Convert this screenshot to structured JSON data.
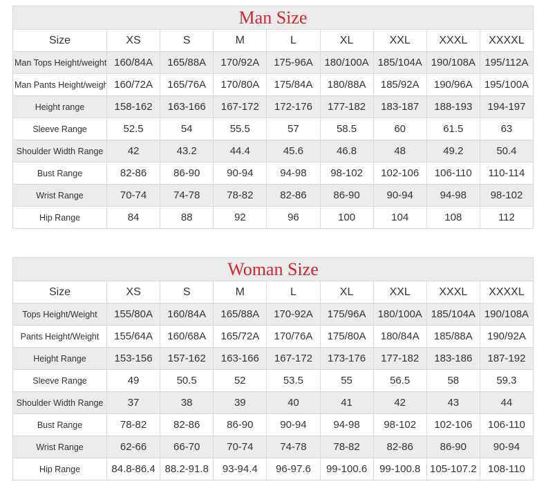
{
  "colors": {
    "title_red": "#d4262b",
    "stripe_bg": "#ebebeb",
    "border": "#d9d9d9",
    "text": "#333333"
  },
  "man_table": {
    "title": "Man Size",
    "header": [
      "Size",
      "XS",
      "S",
      "M",
      "L",
      "XL",
      "XXL",
      "XXXL",
      "XXXXL"
    ],
    "rows": [
      {
        "label": "Man Tops Height/weight",
        "values": [
          "160/84A",
          "165/88A",
          "170/92A",
          "175-96A",
          "180/100A",
          "185/104A",
          "190/108A",
          "195/112A"
        ]
      },
      {
        "label": "Man Pants Height/weight",
        "values": [
          "160/72A",
          "165/76A",
          "170/80A",
          "175/84A",
          "180/88A",
          "185/92A",
          "190/96A",
          "195/100A"
        ]
      },
      {
        "label": "Height range",
        "values": [
          "158-162",
          "163-166",
          "167-172",
          "172-176",
          "177-182",
          "183-187",
          "188-193",
          "194-197"
        ]
      },
      {
        "label": "Sleeve Range",
        "values": [
          "52.5",
          "54",
          "55.5",
          "57",
          "58.5",
          "60",
          "61.5",
          "63"
        ]
      },
      {
        "label": "Shoulder Width Range",
        "values": [
          "42",
          "43.2",
          "44.4",
          "45.6",
          "46.8",
          "48",
          "49.2",
          "50.4"
        ]
      },
      {
        "label": "Bust Range",
        "values": [
          "82-86",
          "86-90",
          "90-94",
          "94-98",
          "98-102",
          "102-106",
          "106-110",
          "110-114"
        ]
      },
      {
        "label": "Wrist Range",
        "values": [
          "70-74",
          "74-78",
          "78-82",
          "82-86",
          "86-90",
          "90-94",
          "94-98",
          "98-102"
        ]
      },
      {
        "label": "Hip Range",
        "values": [
          "84",
          "88",
          "92",
          "96",
          "100",
          "104",
          "108",
          "112"
        ]
      }
    ]
  },
  "woman_table": {
    "title": "Woman Size",
    "header": [
      "Size",
      "XS",
      "S",
      "M",
      "L",
      "XL",
      "XXL",
      "XXXL",
      "XXXXL"
    ],
    "rows": [
      {
        "label": "Tops Height/Weight",
        "values": [
          "155/80A",
          "160/84A",
          "165/88A",
          "170-92A",
          "175/96A",
          "180/100A",
          "185/104A",
          "190/108A"
        ]
      },
      {
        "label": "Pants Height/Weight",
        "values": [
          "155/64A",
          "160/68A",
          "165/72A",
          "170/76A",
          "175/80A",
          "180/84A",
          "185/88A",
          "190/92A"
        ]
      },
      {
        "label": "Height Range",
        "values": [
          "153-156",
          "157-162",
          "163-166",
          "167-172",
          "173-176",
          "177-182",
          "183-186",
          "187-192"
        ]
      },
      {
        "label": "Sleeve Range",
        "values": [
          "49",
          "50.5",
          "52",
          "53.5",
          "55",
          "56.5",
          "58",
          "59.3"
        ]
      },
      {
        "label": "Shoulder Width Range",
        "values": [
          "37",
          "38",
          "39",
          "40",
          "41",
          "42",
          "43",
          "44"
        ]
      },
      {
        "label": "Bust Range",
        "values": [
          "78-82",
          "82-86",
          "86-90",
          "90-94",
          "94-98",
          "98-102",
          "102-106",
          "106-110"
        ]
      },
      {
        "label": "Wrist Range",
        "values": [
          "62-66",
          "66-70",
          "70-74",
          "74-78",
          "78-82",
          "82-86",
          "86-90",
          "90-94"
        ]
      },
      {
        "label": "Hip Range",
        "values": [
          "84.8-86.4",
          "88.2-91.8",
          "93-94.4",
          "96-97.6",
          "99-100.6",
          "99-100.8",
          "105-107.2",
          "108-110"
        ]
      }
    ]
  }
}
